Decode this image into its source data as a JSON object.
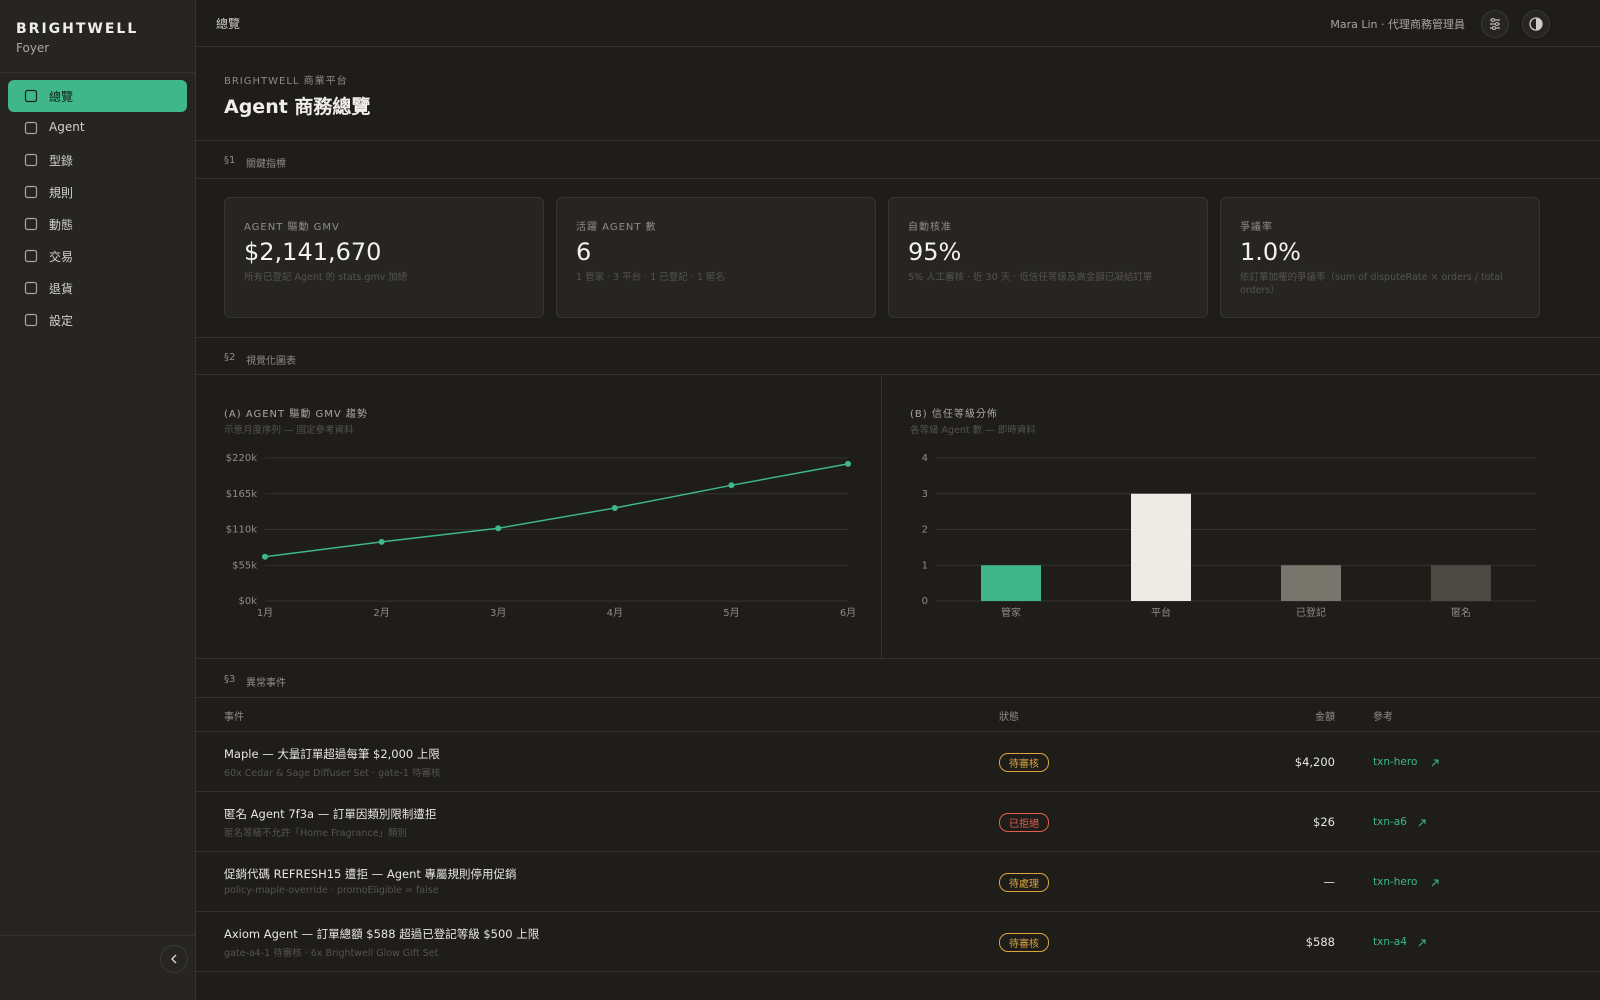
{
  "brand": {
    "name": "BRIGHTWELL",
    "sub": "Foyer"
  },
  "nav": {
    "items": [
      "總覽",
      "Agent",
      "型錄",
      "規則",
      "動態",
      "交易",
      "退貨",
      "設定"
    ],
    "active": 0
  },
  "topbar": {
    "title": "總覽",
    "user": "Mara Lin · 代理商務管理員"
  },
  "header": {
    "eyebrow": "BRIGHTWELL 商業平台",
    "title": "Agent 商務總覽"
  },
  "sections": [
    {
      "number": "§1",
      "title": "關鍵指標"
    },
    {
      "number": "§2",
      "title": "視覺化圖表"
    },
    {
      "number": "§3",
      "title": "異常事件"
    }
  ],
  "kpis": [
    {
      "label": "AGENT 驅動 GMV",
      "value": "$2,141,670",
      "note": "所有已登記 Agent 的 stats.gmv 加總"
    },
    {
      "label": "活躍 AGENT 數",
      "value": "6",
      "note": "1 管家 · 3 平台 · 1 已登記 · 1 匿名"
    },
    {
      "label": "自動核准",
      "value": "95%",
      "note": "5% 人工審核 · 近 30 天 · 低信任等級及高金額已凝結訂單"
    },
    {
      "label": "爭議率",
      "value": "1.0%",
      "note": "依訂單加權的爭議率（sum of disputeRate × orders / total orders）"
    }
  ],
  "charts": [
    {
      "type": "line",
      "title": "(A) AGENT 驅動 GMV 趨勢",
      "subtitle": "示意月度序列 — 固定參考資料",
      "categories": [
        "1月",
        "2月",
        "3月",
        "4月",
        "5月",
        "6月"
      ],
      "values": [
        68000,
        91000,
        112000,
        143000,
        178000,
        211000
      ],
      "color": "#3fb68b",
      "ylim": [
        0,
        220000
      ],
      "grid": true,
      "yticks": [
        {
          "value": 0,
          "label": "$0k"
        },
        {
          "value": 55000,
          "label": "$55k"
        },
        {
          "value": 110000,
          "label": "$110k"
        },
        {
          "value": 165000,
          "label": "$165k"
        },
        {
          "value": 220000,
          "label": "$220k"
        }
      ]
    },
    {
      "type": "bar",
      "title": "(B) 信任等級分佈",
      "subtitle": "各等級 Agent 數 — 即時資料",
      "categories": [
        "管家",
        "平台",
        "已登記",
        "匿名"
      ],
      "values": [
        1,
        3,
        1,
        1
      ],
      "colors": [
        "#3fb68b",
        "#ecebe6",
        "#77756c",
        "#4b4942"
      ],
      "ylim": [
        0,
        4
      ],
      "yticks": [
        0,
        1,
        2,
        3,
        4
      ],
      "grid": true
    }
  ],
  "table": {
    "columns": [
      "事件",
      "狀態",
      "金額",
      "參考"
    ],
    "rows": [
      {
        "title": "Maple — 大量訂單超過每筆 $2,000 上限",
        "detail": "60x Cedar & Sage Diffuser Set · gate-1 待審核",
        "status": "待審核",
        "status_color": "#d9a441",
        "amount": "$4,200",
        "ref": "txn-hero"
      },
      {
        "title": "匿名 Agent 7f3a — 訂單因類別限制遭拒",
        "detail": "匿名等級不允許「Home Fragrance」類別",
        "status": "已拒絕",
        "status_color": "#e0604c",
        "amount": "$26",
        "ref": "txn-a6"
      },
      {
        "title": "促銷代碼 REFRESH15 遭拒 — Agent 專屬規則停用促銷",
        "detail": "policy-maple-override · promoEligible = false",
        "status": "待處理",
        "status_color": "#d9a441",
        "amount": "—",
        "ref": "txn-hero"
      },
      {
        "title": "Axiom Agent — 訂單總額 $588 超過已登記等級 $500 上限",
        "detail": "gate-a4-1 待審核 · 6x Brightwell Glow Gift Set",
        "status": "待審核",
        "status_color": "#d9a441",
        "amount": "$588",
        "ref": "txn-a4"
      }
    ]
  }
}
